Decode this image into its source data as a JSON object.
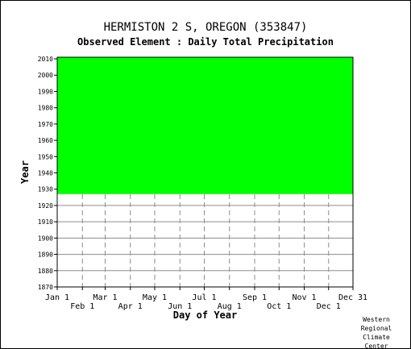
{
  "title": "HERMISTON 2 S, OREGON   (353847)",
  "subtitle": "Observed Element : Daily Total Precipitation",
  "credit": [
    "Western",
    "Regional",
    "Climate",
    "Center"
  ],
  "colors": {
    "data_fill": "#00ff00",
    "missing": "#ffffff",
    "grid": "#8c8c8c",
    "axis": "#000000"
  },
  "chart_data": {
    "type": "heatmap",
    "xlabel": "Day of Year",
    "ylabel": "Year",
    "xlim": [
      1,
      365
    ],
    "ylim": [
      1870,
      2011
    ],
    "x_ticks_upper": [
      {
        "label": "Jan 1",
        "day": 1
      },
      {
        "label": "Mar 1",
        "day": 60
      },
      {
        "label": "May 1",
        "day": 121
      },
      {
        "label": "Jul 1",
        "day": 182
      },
      {
        "label": "Sep 1",
        "day": 244
      },
      {
        "label": "Nov 1",
        "day": 305
      },
      {
        "label": "Dec 31",
        "day": 365
      }
    ],
    "x_ticks_lower": [
      {
        "label": "Feb 1",
        "day": 32
      },
      {
        "label": "Apr 1",
        "day": 91
      },
      {
        "label": "Jun 1",
        "day": 152
      },
      {
        "label": "Aug 1",
        "day": 213
      },
      {
        "label": "Oct 1",
        "day": 274
      },
      {
        "label": "Dec 1",
        "day": 335
      }
    ],
    "y_ticks": [
      1870,
      1880,
      1890,
      1900,
      1910,
      1920,
      1930,
      1940,
      1950,
      1960,
      1970,
      1980,
      1990,
      2000,
      2010
    ],
    "data_years": [
      1927,
      2010
    ],
    "data_period": {
      "start_year": 1927,
      "end_year": 2010
    },
    "grid": true,
    "legend": "none"
  }
}
